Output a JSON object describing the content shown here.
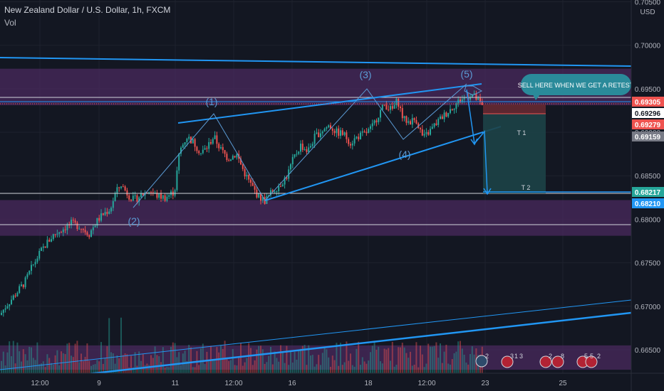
{
  "header": {
    "title": "New Zealand Dollar / U.S. Dollar, 1h, FXCM",
    "volume_label": "Vol",
    "currency": "USD"
  },
  "colors": {
    "background": "#131722",
    "up": "#26a69a",
    "down": "#ef5350",
    "trendline": "#2196f3",
    "wave_label": "#5b9bd5",
    "zone": "#4a2a5e",
    "callout": "#2a8a9a",
    "target_zone": "#1d4347",
    "stop_zone": "#6b2a33"
  },
  "annotations": {
    "callout_text": "SELL HERE WHEN WE GET A RETEST",
    "wave_labels": [
      "(1)",
      "(2)",
      "(3)",
      "(4)",
      "(5)"
    ],
    "targets": [
      "T 1",
      "T 2"
    ]
  },
  "events": {
    "badges": [
      "2",
      "3",
      "1",
      "3",
      "2",
      "8",
      "5",
      "5",
      "2"
    ]
  },
  "chart_data": {
    "type": "candlestick",
    "symbol": "NZDUSD",
    "timeframe": "1h",
    "y_ticks": [
      "0.70500",
      "0.70000",
      "0.69500",
      "0.69000",
      "0.68500",
      "0.68000",
      "0.67500",
      "0.67000",
      "0.66500"
    ],
    "ylim": [
      0.6623,
      0.7052
    ],
    "x_ticks": [
      "12:00",
      "9",
      "11",
      "12:00",
      "16",
      "18",
      "12:00",
      "23",
      "25"
    ],
    "price_labels": [
      {
        "text": "0.69305",
        "value": 0.69305,
        "color": "#ef5350"
      },
      {
        "text": "0.69296",
        "value": 0.69296,
        "color": "#ffffff"
      },
      {
        "text": "0.69279",
        "value": 0.69279,
        "color": "#ef5350"
      },
      {
        "text": "0.69159",
        "value": 0.69159,
        "color": "#787b86"
      },
      {
        "text": "0.68217",
        "value": 0.68217,
        "color": "#26a69a"
      },
      {
        "text": "0.68210",
        "value": 0.6821,
        "color": "#2196f3"
      }
    ],
    "price_path": [
      [
        0,
        0.669
      ],
      [
        8,
        0.67
      ],
      [
        20,
        0.6712
      ],
      [
        35,
        0.6728
      ],
      [
        45,
        0.6745
      ],
      [
        55,
        0.676
      ],
      [
        65,
        0.6772
      ],
      [
        75,
        0.6782
      ],
      [
        90,
        0.679
      ],
      [
        100,
        0.6795
      ],
      [
        112,
        0.6792
      ],
      [
        125,
        0.6783
      ],
      [
        135,
        0.6797
      ],
      [
        145,
        0.6806
      ],
      [
        155,
        0.6812
      ],
      [
        162,
        0.683
      ],
      [
        170,
        0.684
      ],
      [
        180,
        0.6828
      ],
      [
        188,
        0.6822
      ],
      [
        198,
        0.6828
      ],
      [
        210,
        0.6833
      ],
      [
        220,
        0.6827
      ],
      [
        232,
        0.6825
      ],
      [
        245,
        0.6832
      ],
      [
        252,
        0.6878
      ],
      [
        262,
        0.6895
      ],
      [
        272,
        0.6888
      ],
      [
        282,
        0.6876
      ],
      [
        290,
        0.6882
      ],
      [
        300,
        0.6895
      ],
      [
        310,
        0.688
      ],
      [
        320,
        0.687
      ],
      [
        332,
        0.6875
      ],
      [
        342,
        0.6855
      ],
      [
        352,
        0.684
      ],
      [
        362,
        0.6827
      ],
      [
        372,
        0.6821
      ],
      [
        382,
        0.6832
      ],
      [
        393,
        0.684
      ],
      [
        403,
        0.685
      ],
      [
        412,
        0.687
      ],
      [
        422,
        0.6885
      ],
      [
        432,
        0.6878
      ],
      [
        442,
        0.6895
      ],
      [
        452,
        0.6902
      ],
      [
        462,
        0.6908
      ],
      [
        472,
        0.69
      ],
      [
        482,
        0.6898
      ],
      [
        492,
        0.6888
      ],
      [
        502,
        0.6895
      ],
      [
        512,
        0.6898
      ],
      [
        522,
        0.6905
      ],
      [
        532,
        0.6922
      ],
      [
        540,
        0.6932
      ],
      [
        550,
        0.6925
      ],
      [
        558,
        0.6937
      ],
      [
        566,
        0.6915
      ],
      [
        574,
        0.6912
      ],
      [
        584,
        0.6915
      ],
      [
        594,
        0.6893
      ],
      [
        604,
        0.6902
      ],
      [
        614,
        0.6912
      ],
      [
        624,
        0.692
      ],
      [
        634,
        0.6928
      ],
      [
        644,
        0.6936
      ],
      [
        654,
        0.694
      ],
      [
        662,
        0.6944
      ],
      [
        670,
        0.6937
      ],
      [
        677,
        0.6929
      ]
    ],
    "zones": [
      {
        "from": 0.6931,
        "to": 0.6973
      },
      {
        "from": 0.6781,
        "to": 0.6822
      },
      {
        "from": 0.6627,
        "to": 0.6655
      }
    ]
  }
}
